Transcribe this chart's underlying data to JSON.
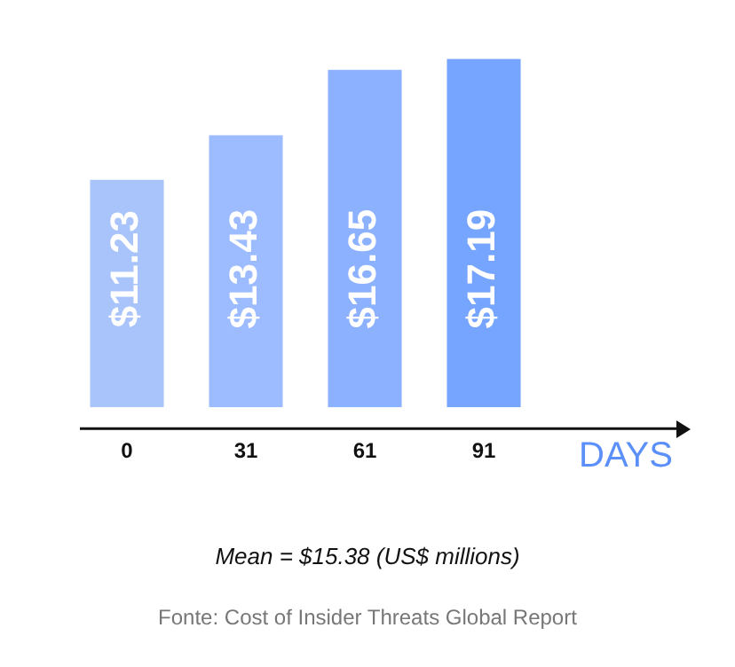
{
  "chart_data": {
    "type": "bar",
    "xlabel": "DAYS",
    "categories": [
      "0",
      "31",
      "61",
      "91"
    ],
    "values": [
      11.23,
      13.43,
      16.65,
      17.19
    ],
    "value_labels": [
      "$11.23",
      "$13.43",
      "$16.65",
      "$17.19"
    ],
    "colors": [
      "#a9c4fb",
      "#9dbcff",
      "#8cb1ff",
      "#76a5ff"
    ],
    "grid": false,
    "legend": false,
    "annotations": [
      "Mean = $15.38 (US$ millions)",
      "Fonte: Cost of Insider Threats Global Report"
    ]
  }
}
